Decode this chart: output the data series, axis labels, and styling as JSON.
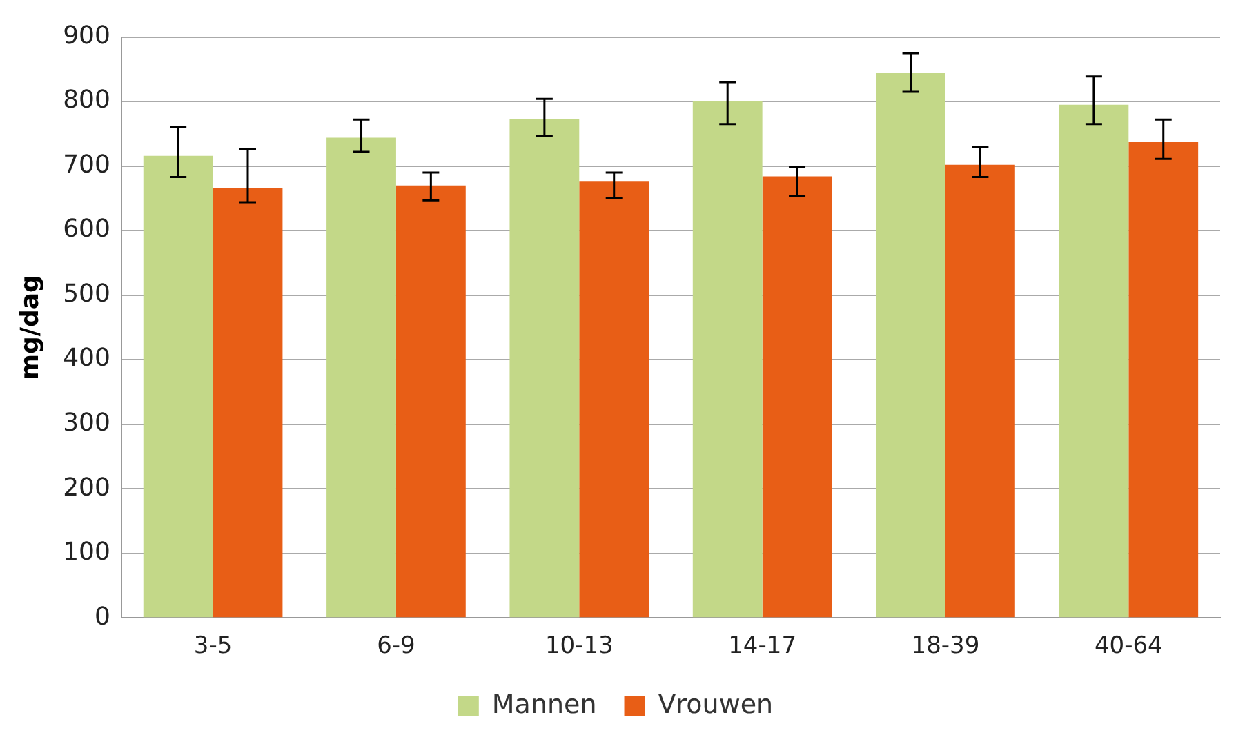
{
  "chart_data": {
    "type": "bar",
    "ylabel": "mg/dag",
    "categories": [
      "3-5",
      "6-9",
      "10-13",
      "14-17",
      "18-39",
      "40-64"
    ],
    "series": [
      {
        "name": "Mannen",
        "color": "#c3d888",
        "values": [
          716,
          744,
          773,
          801,
          844,
          795
        ],
        "errors": [
          [
            683,
            761
          ],
          [
            722,
            772
          ],
          [
            747,
            804
          ],
          [
            765,
            830
          ],
          [
            815,
            875
          ],
          [
            765,
            839
          ]
        ]
      },
      {
        "name": "Vrouwen",
        "color": "#e85e16",
        "values": [
          666,
          670,
          677,
          684,
          702,
          737
        ],
        "errors": [
          [
            644,
            726
          ],
          [
            647,
            690
          ],
          [
            650,
            690
          ],
          [
            654,
            698
          ],
          [
            683,
            729
          ],
          [
            711,
            772
          ]
        ]
      }
    ],
    "ylim": [
      0,
      900
    ],
    "yticks": [
      0,
      100,
      200,
      300,
      400,
      500,
      600,
      700,
      800,
      900
    ],
    "grid": "y",
    "legend": "bottom"
  }
}
